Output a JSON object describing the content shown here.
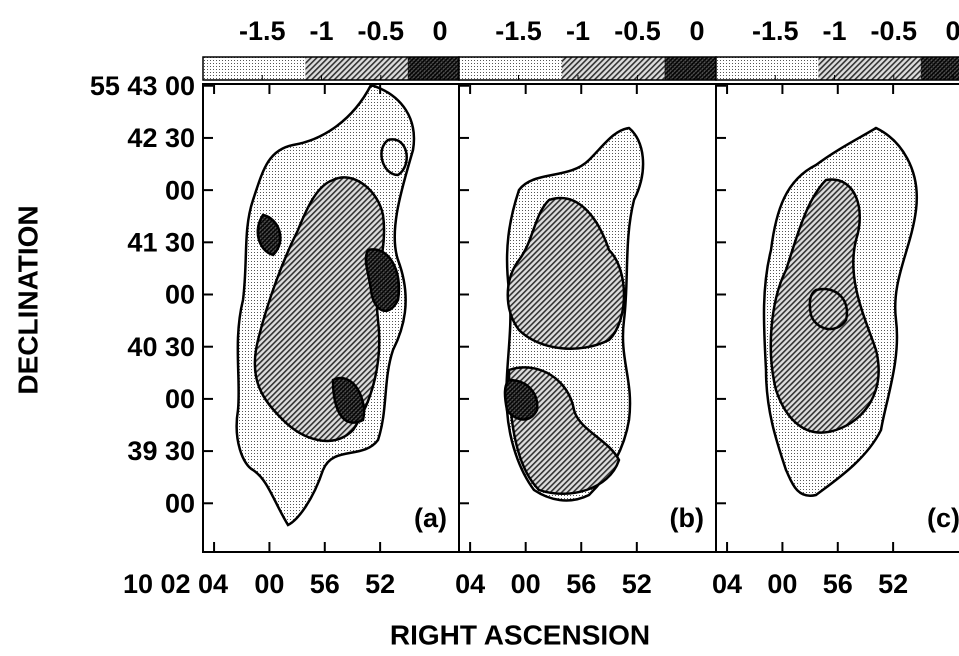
{
  "chart_data": [
    {
      "type": "contour",
      "panel_label": "(a)",
      "ylabel": "DECLINATION",
      "xlabel": "RIGHT ASCENSION",
      "colorbar_lim": [
        -2,
        0.16
      ],
      "colorbar_ticks": [
        -1.5,
        -1,
        -0.5,
        0
      ],
      "xlim": [
        124.8,
        106.3
      ],
      "xticks": [
        {
          "value": 124,
          "label": "10 02 04"
        },
        {
          "value": 120,
          "label": "00"
        },
        {
          "value": 116,
          "label": "56"
        },
        {
          "value": 112,
          "label": "52"
        }
      ],
      "ylim": [
        2312,
        2581
      ],
      "yticks": [
        {
          "value": 2580,
          "label": "55 43 00"
        },
        {
          "value": 2550,
          "label": "42 30"
        },
        {
          "value": 2520,
          "label": "00"
        },
        {
          "value": 2490,
          "label": "41 30"
        },
        {
          "value": 2460,
          "label": "00"
        },
        {
          "value": 2430,
          "label": "40 30"
        },
        {
          "value": 2400,
          "label": "00"
        },
        {
          "value": 2370,
          "label": "39 30"
        },
        {
          "value": 2340,
          "label": "00"
        }
      ]
    },
    {
      "type": "contour",
      "panel_label": "(b)",
      "colorbar_lim": [
        -2,
        0.16
      ],
      "colorbar_ticks": [
        -1.5,
        -1,
        -0.5,
        0
      ],
      "xlim": [
        124.8,
        106.3
      ],
      "xticks": [
        {
          "value": 124,
          "label": "04"
        },
        {
          "value": 120,
          "label": "00"
        },
        {
          "value": 116,
          "label": "56"
        },
        {
          "value": 112,
          "label": "52"
        }
      ]
    },
    {
      "type": "contour",
      "panel_label": "(c)",
      "colorbar_lim": [
        -2,
        0.16
      ],
      "colorbar_ticks": [
        -1.5,
        -1,
        -0.5,
        0
      ],
      "xlim": [
        124.8,
        106.3
      ],
      "xticks": [
        {
          "value": 124,
          "label": "04"
        },
        {
          "value": 120,
          "label": "00"
        },
        {
          "value": 116,
          "label": "56"
        },
        {
          "value": 112,
          "label": "52"
        }
      ]
    }
  ]
}
